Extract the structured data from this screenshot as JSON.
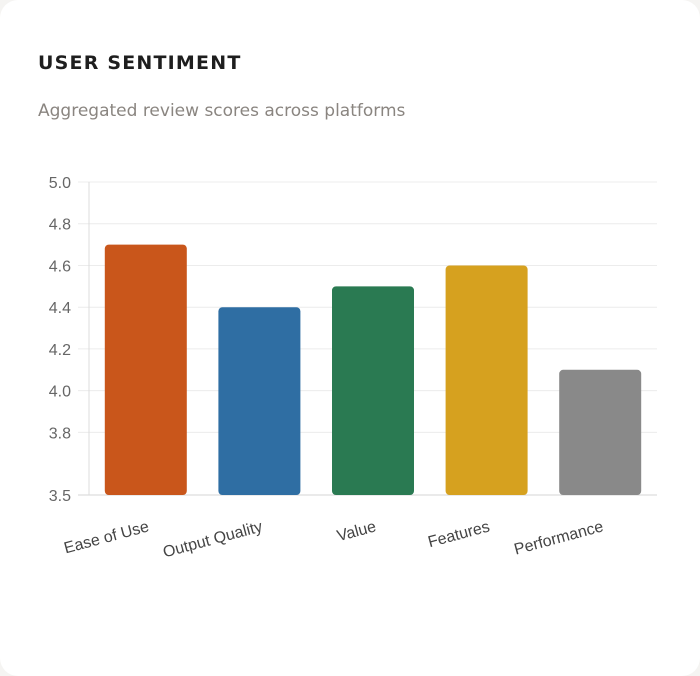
{
  "card": {
    "title": "USER SENTIMENT",
    "subtitle": "Aggregated review scores across platforms"
  },
  "chart_data": {
    "type": "bar",
    "categories": [
      "Ease of Use",
      "Output Quality",
      "Value",
      "Features",
      "Performance"
    ],
    "values": [
      4.7,
      4.4,
      4.5,
      4.6,
      4.1
    ],
    "colors": [
      "#c9561b",
      "#2f6ea3",
      "#2a7a52",
      "#d6a11f",
      "#898989"
    ],
    "y_ticks": [
      "5.0",
      "4.8",
      "4.6",
      "4.4",
      "4.2",
      "4.0",
      "3.8",
      "3.5"
    ],
    "ylim": [
      3.5,
      5.0
    ],
    "grid": true,
    "gridline_color": "#ececec",
    "xlabel": "",
    "ylabel": ""
  }
}
